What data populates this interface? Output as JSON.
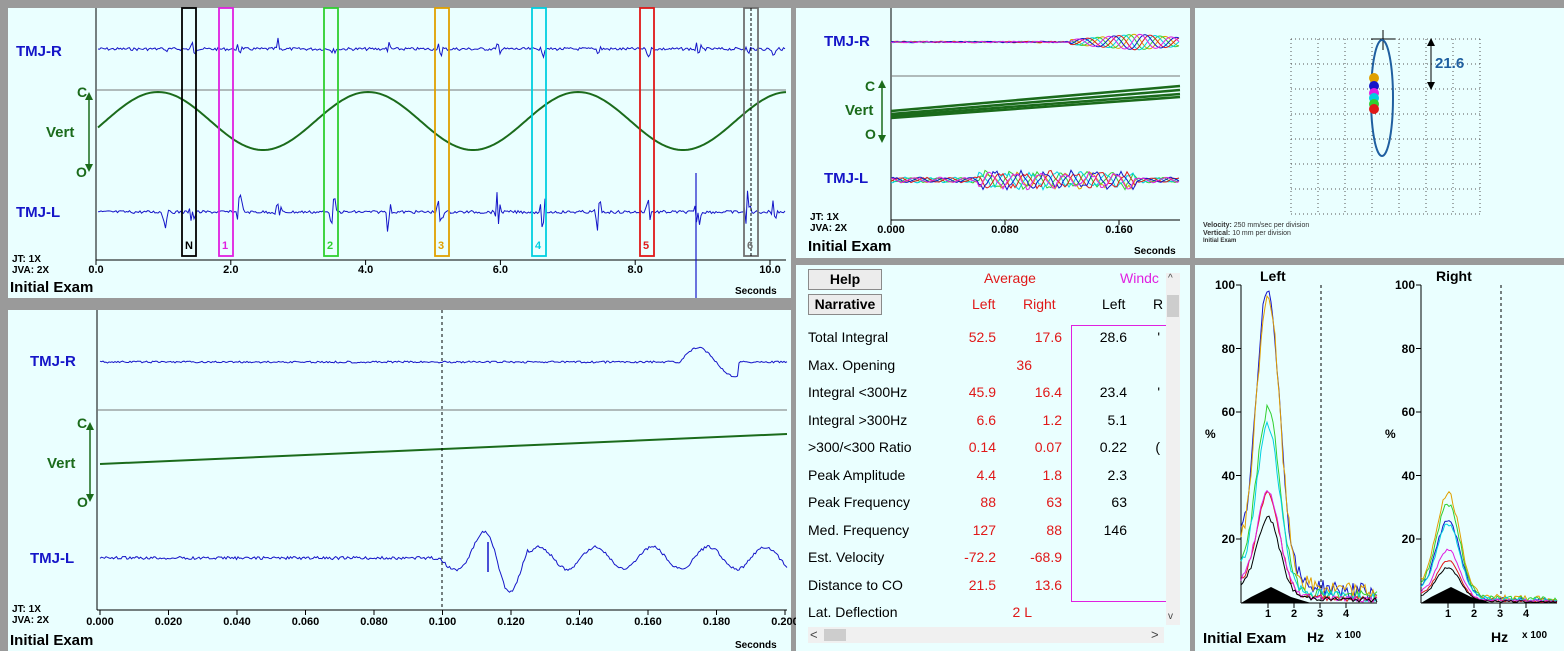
{
  "colors": {
    "emg": "#1515c8",
    "vert": "#1b6b1b",
    "red": "#e01818",
    "pink": "#e020e0",
    "panel_bg": "#eaffff"
  },
  "top_left": {
    "channel_r": "TMJ-R",
    "channel_l": "TMJ-L",
    "vert_c": "C",
    "vert_label": "Vert",
    "vert_o": "O",
    "jt": "JT: 1X",
    "jva": "JVA: 2X",
    "x_ticks": [
      "0.0",
      "2.0",
      "4.0",
      "6.0",
      "8.0",
      "10.0"
    ],
    "x_unit": "Seconds",
    "footer": "Initial Exam",
    "markers": [
      {
        "label": "N",
        "color": "#000000"
      },
      {
        "label": "1",
        "color": "#e020e0"
      },
      {
        "label": "2",
        "color": "#30d030"
      },
      {
        "label": "3",
        "color": "#e0a000"
      },
      {
        "label": "4",
        "color": "#00d0e0"
      },
      {
        "label": "5",
        "color": "#e01818"
      },
      {
        "label": "6",
        "color": "#707070"
      }
    ]
  },
  "top_mid": {
    "channel_r": "TMJ-R",
    "channel_l": "TMJ-L",
    "vert_c": "C",
    "vert_label": "Vert",
    "vert_o": "O",
    "jt": "JT: 1X",
    "jva": "JVA: 2X",
    "x_ticks": [
      "0.000",
      "0.080",
      "0.160"
    ],
    "x_unit": "Seconds",
    "footer": "Initial Exam"
  },
  "top_right": {
    "value": "21.6",
    "velocity_label": "Velocity:",
    "velocity_text": "250 mm/sec per division",
    "vertical_label": "Vertical:",
    "vertical_text": "10 mm per division",
    "footer": "Initial Exam"
  },
  "bottom_left": {
    "channel_r": "TMJ-R",
    "channel_l": "TMJ-L",
    "vert_c": "C",
    "vert_label": "Vert",
    "vert_o": "O",
    "jt": "JT: 1X",
    "jva": "JVA: 2X",
    "x_ticks": [
      "0.000",
      "0.020",
      "0.040",
      "0.060",
      "0.080",
      "0.100",
      "0.120",
      "0.140",
      "0.160",
      "0.180",
      "0.200"
    ],
    "x_unit": "Seconds",
    "footer": "Initial Exam"
  },
  "stats": {
    "help_button": "Help",
    "narrative_button": "Narrative",
    "average_header": "Average",
    "window_header": "Windc",
    "col_left": "Left",
    "col_right": "Right",
    "col_window_left": "Left",
    "col_window_right": "R",
    "rows": [
      {
        "label": "Total Integral",
        "avg_left": "52.5",
        "avg_right": "17.6",
        "win_left": "28.6",
        "win_right": "'"
      },
      {
        "label": "Max. Opening",
        "avg_center": "36",
        "win_left": "",
        "win_right": ""
      },
      {
        "label": "Integral <300Hz",
        "avg_left": "45.9",
        "avg_right": "16.4",
        "win_left": "23.4",
        "win_right": "'"
      },
      {
        "label": "Integral >300Hz",
        "avg_left": "6.6",
        "avg_right": "1.2",
        "win_left": "5.1",
        "win_right": ""
      },
      {
        "label": ">300/<300 Ratio",
        "avg_left": "0.14",
        "avg_right": "0.07",
        "win_left": "0.22",
        "win_right": "("
      },
      {
        "label": "Peak Amplitude",
        "avg_left": "4.4",
        "avg_right": "1.8",
        "win_left": "2.3",
        "win_right": ""
      },
      {
        "label": "Peak Frequency",
        "avg_left": "88",
        "avg_right": "63",
        "win_left": "63",
        "win_right": ""
      },
      {
        "label": "Med. Frequency",
        "avg_left": "127",
        "avg_right": "88",
        "win_left": "146",
        "win_right": ""
      },
      {
        "label": "Est. Velocity",
        "avg_left": "-72.2",
        "avg_right": "-68.9",
        "win_left": "",
        "win_right": ""
      },
      {
        "label": "Distance to CO",
        "avg_left": "21.5",
        "avg_right": "13.6",
        "win_left": "",
        "win_right": ""
      },
      {
        "label": "Lat. Deflection",
        "avg_center": "2 L",
        "win_left": "",
        "win_right": ""
      }
    ]
  },
  "spectrum": {
    "left_title": "Left",
    "right_title": "Right",
    "y_ticks": [
      "100",
      "80",
      "60",
      "40",
      "20"
    ],
    "y_unit": "%",
    "x_ticks": [
      "1",
      "2",
      "3",
      "4"
    ],
    "x_unit": "Hz",
    "x_scale": "x 100",
    "footer": "Initial Exam"
  }
}
